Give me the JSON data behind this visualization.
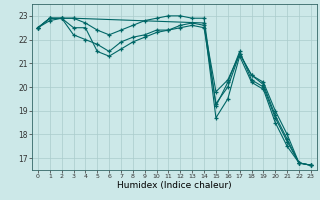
{
  "xlabel": "Humidex (Indice chaleur)",
  "ylabel": "",
  "xlim": [
    -0.5,
    23.5
  ],
  "ylim": [
    16.5,
    23.5
  ],
  "yticks": [
    17,
    18,
    19,
    20,
    21,
    22,
    23
  ],
  "xticks": [
    0,
    1,
    2,
    3,
    4,
    5,
    6,
    7,
    8,
    9,
    10,
    11,
    12,
    13,
    14,
    15,
    16,
    17,
    18,
    19,
    20,
    21,
    22,
    23
  ],
  "bg_color": "#cce8e8",
  "grid_color": "#aacccc",
  "line_color": "#006666",
  "lines": [
    {
      "x": [
        0,
        1,
        2,
        3,
        14,
        15,
        16,
        17,
        18,
        19,
        20,
        21,
        22,
        23
      ],
      "y": [
        22.5,
        22.9,
        22.9,
        22.9,
        22.7,
        18.7,
        19.5,
        21.3,
        20.2,
        19.9,
        18.5,
        17.5,
        16.8,
        16.7
      ]
    },
    {
      "x": [
        0,
        1,
        2,
        3,
        4,
        5,
        6,
        7,
        8,
        9,
        10,
        11,
        12,
        13,
        14,
        15,
        16,
        17,
        18,
        19,
        20,
        21,
        22,
        23
      ],
      "y": [
        22.5,
        22.9,
        22.9,
        22.5,
        22.5,
        21.5,
        21.3,
        21.6,
        21.9,
        22.1,
        22.3,
        22.4,
        22.5,
        22.6,
        22.5,
        19.3,
        20.0,
        21.4,
        20.5,
        20.1,
        18.8,
        17.8,
        16.8,
        16.7
      ]
    },
    {
      "x": [
        0,
        1,
        2,
        3,
        4,
        5,
        6,
        7,
        8,
        9,
        10,
        11,
        12,
        13,
        14,
        15,
        16,
        17,
        18,
        19,
        20,
        21,
        22,
        23
      ],
      "y": [
        22.5,
        22.9,
        22.9,
        22.2,
        22.0,
        21.8,
        21.5,
        21.9,
        22.1,
        22.2,
        22.4,
        22.4,
        22.6,
        22.7,
        22.6,
        19.8,
        20.3,
        21.4,
        20.5,
        20.2,
        19.0,
        18.0,
        16.8,
        16.7
      ]
    },
    {
      "x": [
        0,
        1,
        2,
        3,
        4,
        5,
        6,
        7,
        8,
        9,
        10,
        11,
        12,
        13,
        14,
        15,
        16,
        17,
        18,
        19,
        20,
        21,
        22,
        23
      ],
      "y": [
        22.5,
        22.8,
        22.9,
        22.9,
        22.7,
        22.4,
        22.2,
        22.4,
        22.6,
        22.8,
        22.9,
        23.0,
        23.0,
        22.9,
        22.9,
        19.2,
        20.2,
        21.5,
        20.3,
        20.0,
        18.7,
        17.7,
        16.8,
        16.7
      ]
    }
  ]
}
